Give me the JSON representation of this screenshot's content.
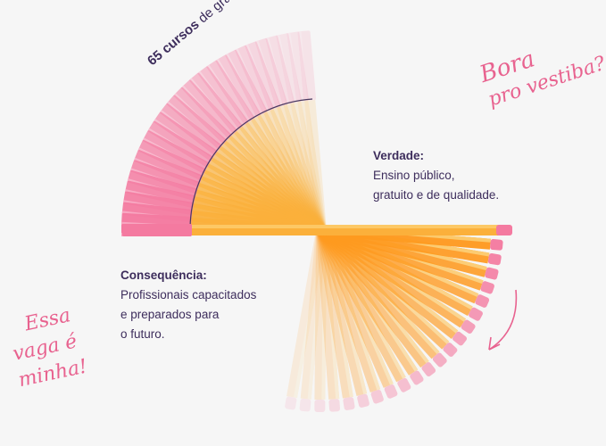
{
  "arc_label": {
    "bold": "65 cursos",
    "rest": "de graduação."
  },
  "verdade": {
    "title": "Verdade:",
    "lines": [
      "Ensino público,",
      "gratuito e de qualidade."
    ]
  },
  "consequencia": {
    "title": "Consequência:",
    "lines": [
      "Profissionais capacitados",
      "e preparados para",
      "o futuro."
    ]
  },
  "handwriting": {
    "top_right": [
      "Bora",
      "pro vestiba?"
    ],
    "bottom_left": [
      "Essa",
      "vaga é",
      "minha!"
    ]
  },
  "colors": {
    "pink": "#f47aa0",
    "orange": "#fbb03b",
    "text": "#3d2d5c",
    "accent": "#e8628f"
  }
}
